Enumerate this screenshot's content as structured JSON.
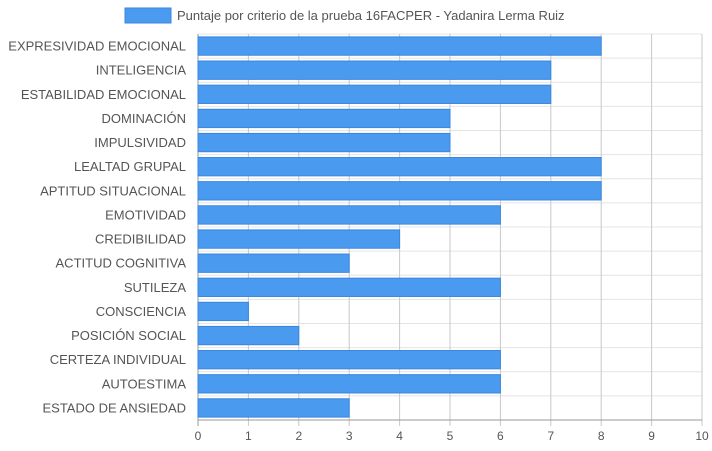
{
  "chart_data": {
    "type": "bar",
    "orientation": "horizontal",
    "title": "",
    "legend": {
      "label": "Puntaje por criterio de la prueba 16FACPER - Yadanira Lerma Ruiz",
      "position": "top"
    },
    "categories": [
      "EXPRESIVIDAD EMOCIONAL",
      "INTELIGENCIA",
      "ESTABILIDAD EMOCIONAL",
      "DOMINACIÓN",
      "IMPULSIVIDAD",
      "LEALTAD GRUPAL",
      "APTITUD SITUACIONAL",
      "EMOTIVIDAD",
      "CREDIBILIDAD",
      "ACTITUD COGNITIVA",
      "SUTILEZA",
      "CONSCIENCIA",
      "POSICIÓN SOCIAL",
      "CERTEZA INDIVIDUAL",
      "AUTOESTIMA",
      "ESTADO DE ANSIEDAD"
    ],
    "values": [
      8,
      7,
      7,
      5,
      5,
      8,
      8,
      6,
      4,
      3,
      6,
      1,
      2,
      6,
      6,
      3
    ],
    "xlim": [
      0,
      10
    ],
    "xticks": [
      "0",
      "1",
      "2",
      "3",
      "4",
      "5",
      "6",
      "7",
      "8",
      "9",
      "10"
    ],
    "grid": true,
    "colors": {
      "bar_fill": "#4a9af0",
      "bar_stroke": "#3a86df",
      "grid": "#d0d0d0",
      "axis": "#999999"
    }
  }
}
